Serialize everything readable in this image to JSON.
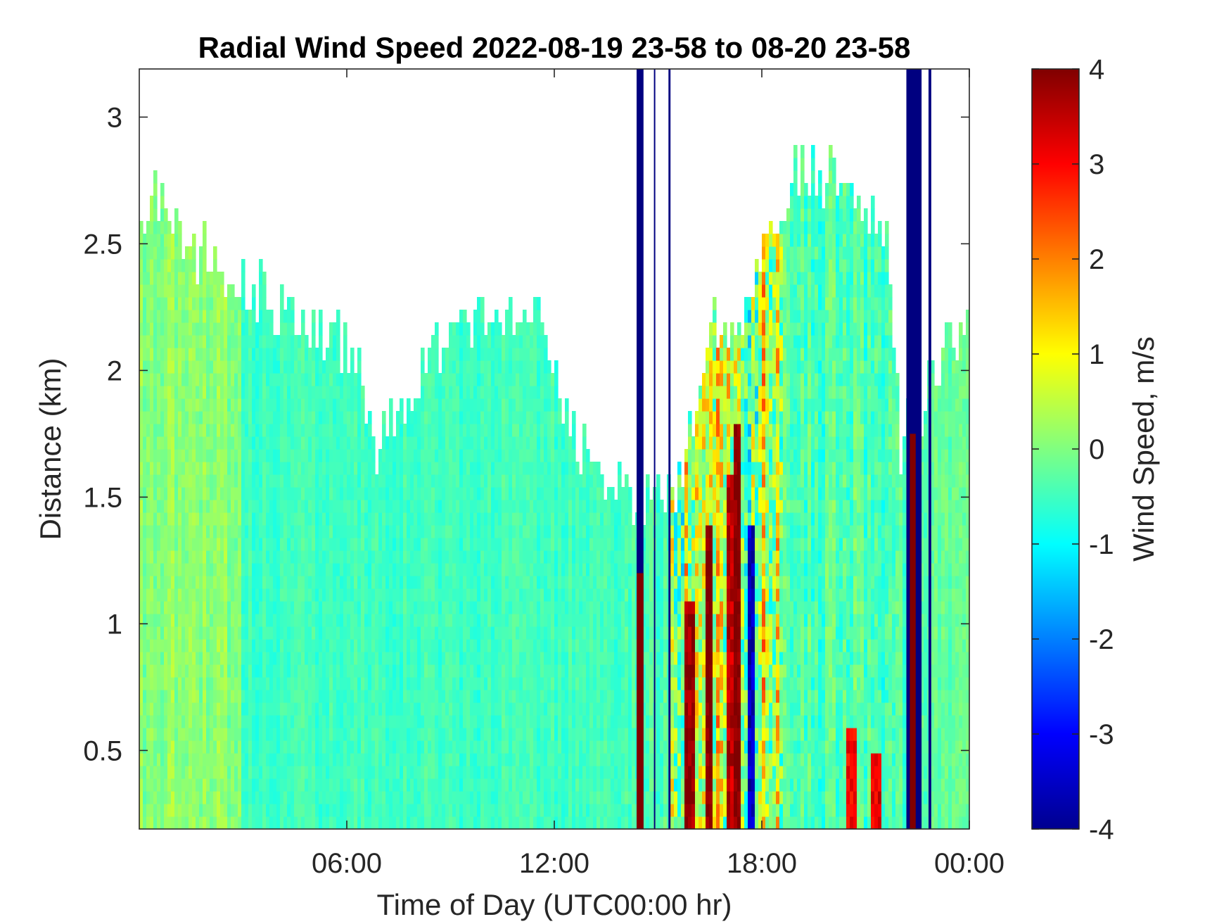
{
  "chart_data": {
    "type": "heatmap",
    "title": "Radial Wind Speed 2022-08-19 23-58 to 08-20 23-58",
    "xlabel": "Time of Day (UTC00:00 hr)",
    "ylabel": "Distance (km)",
    "xlim_hours": [
      0,
      24
    ],
    "ylim": [
      0.19,
      3.19
    ],
    "x_ticks": [
      {
        "hour": 6,
        "label": "06:00"
      },
      {
        "hour": 12,
        "label": "12:00"
      },
      {
        "hour": 18,
        "label": "18:00"
      },
      {
        "hour": 24,
        "label": "00:00"
      }
    ],
    "y_ticks": [
      {
        "value": 0.5,
        "label": "0.5"
      },
      {
        "value": 1,
        "label": "1"
      },
      {
        "value": 1.5,
        "label": "1.5"
      },
      {
        "value": 2,
        "label": "2"
      },
      {
        "value": 2.5,
        "label": "2.5"
      },
      {
        "value": 3,
        "label": "3"
      }
    ],
    "colorbar": {
      "label": "Wind Speed, m/s",
      "clim": [
        -4,
        4
      ],
      "ticks": [
        "-4",
        "-3",
        "-2",
        "-1",
        "0",
        "1",
        "2",
        "3",
        "4"
      ],
      "colormap": "jet"
    },
    "grid": false,
    "data_ceiling_km": [
      {
        "hour": 0.0,
        "top": 2.55
      },
      {
        "hour": 0.6,
        "top": 2.7
      },
      {
        "hour": 1.5,
        "top": 2.5
      },
      {
        "hour": 3.0,
        "top": 2.35
      },
      {
        "hour": 4.5,
        "top": 2.2
      },
      {
        "hour": 5.5,
        "top": 2.15
      },
      {
        "hour": 6.3,
        "top": 2.0
      },
      {
        "hour": 6.8,
        "top": 1.7
      },
      {
        "hour": 7.5,
        "top": 1.85
      },
      {
        "hour": 8.5,
        "top": 2.1
      },
      {
        "hour": 10.0,
        "top": 2.2
      },
      {
        "hour": 11.5,
        "top": 2.2
      },
      {
        "hour": 12.5,
        "top": 1.75
      },
      {
        "hour": 13.3,
        "top": 1.55
      },
      {
        "hour": 14.4,
        "top": 1.5
      },
      {
        "hour": 15.5,
        "top": 1.45
      },
      {
        "hour": 16.5,
        "top": 2.2
      },
      {
        "hour": 17.3,
        "top": 2.15
      },
      {
        "hour": 18.0,
        "top": 2.4
      },
      {
        "hour": 19.0,
        "top": 2.8
      },
      {
        "hour": 20.5,
        "top": 2.75
      },
      {
        "hour": 21.6,
        "top": 2.5
      },
      {
        "hour": 22.0,
        "top": 1.7
      },
      {
        "hour": 23.0,
        "top": 2.0
      },
      {
        "hour": 24.0,
        "top": 2.2
      }
    ],
    "regimes": [
      {
        "hours": [
          0,
          3
        ],
        "mean_speed": 0.1,
        "spread": 0.5
      },
      {
        "hours": [
          3,
          14
        ],
        "mean_speed": -0.5,
        "spread": 0.35
      },
      {
        "hours": [
          15.4,
          18.6
        ],
        "mean_speed": 0.4,
        "spread": 2.2
      },
      {
        "hours": [
          18.6,
          22
        ],
        "mean_speed": -0.4,
        "spread": 0.7
      },
      {
        "hours": [
          22.6,
          24
        ],
        "mean_speed": -0.3,
        "spread": 0.45
      }
    ],
    "saturated_bands": [
      {
        "hours": [
          14.38,
          14.58
        ],
        "value": -4
      },
      {
        "hours": [
          14.38,
          14.58
        ],
        "value": 4,
        "distance_km": [
          0.19,
          1.2
        ]
      },
      {
        "hours": [
          14.88,
          14.92
        ],
        "value": -4
      },
      {
        "hours": [
          15.3,
          15.36
        ],
        "value": -4
      },
      {
        "hours": [
          22.18,
          22.62
        ],
        "value": -4
      },
      {
        "hours": [
          22.28,
          22.45
        ],
        "value": 4,
        "distance_km": [
          0.19,
          1.75
        ]
      },
      {
        "hours": [
          22.82,
          22.9
        ],
        "value": -4
      }
    ],
    "strong_streaks": [
      {
        "hour": 15.9,
        "value": 3.8,
        "distance_km": [
          0.2,
          1.1
        ]
      },
      {
        "hour": 16.5,
        "value": 4.0,
        "distance_km": [
          0.2,
          1.4
        ]
      },
      {
        "hour": 17.1,
        "value": 3.5,
        "distance_km": [
          0.2,
          1.6
        ]
      },
      {
        "hour": 17.3,
        "value": 4.0,
        "distance_km": [
          0.2,
          1.8
        ]
      },
      {
        "hour": 17.7,
        "value": -3.5,
        "distance_km": [
          0.2,
          1.4
        ]
      },
      {
        "hour": 20.6,
        "value": 3.0,
        "distance_km": [
          0.2,
          0.6
        ]
      },
      {
        "hour": 21.3,
        "value": 3.2,
        "distance_km": [
          0.2,
          0.5
        ]
      }
    ]
  }
}
